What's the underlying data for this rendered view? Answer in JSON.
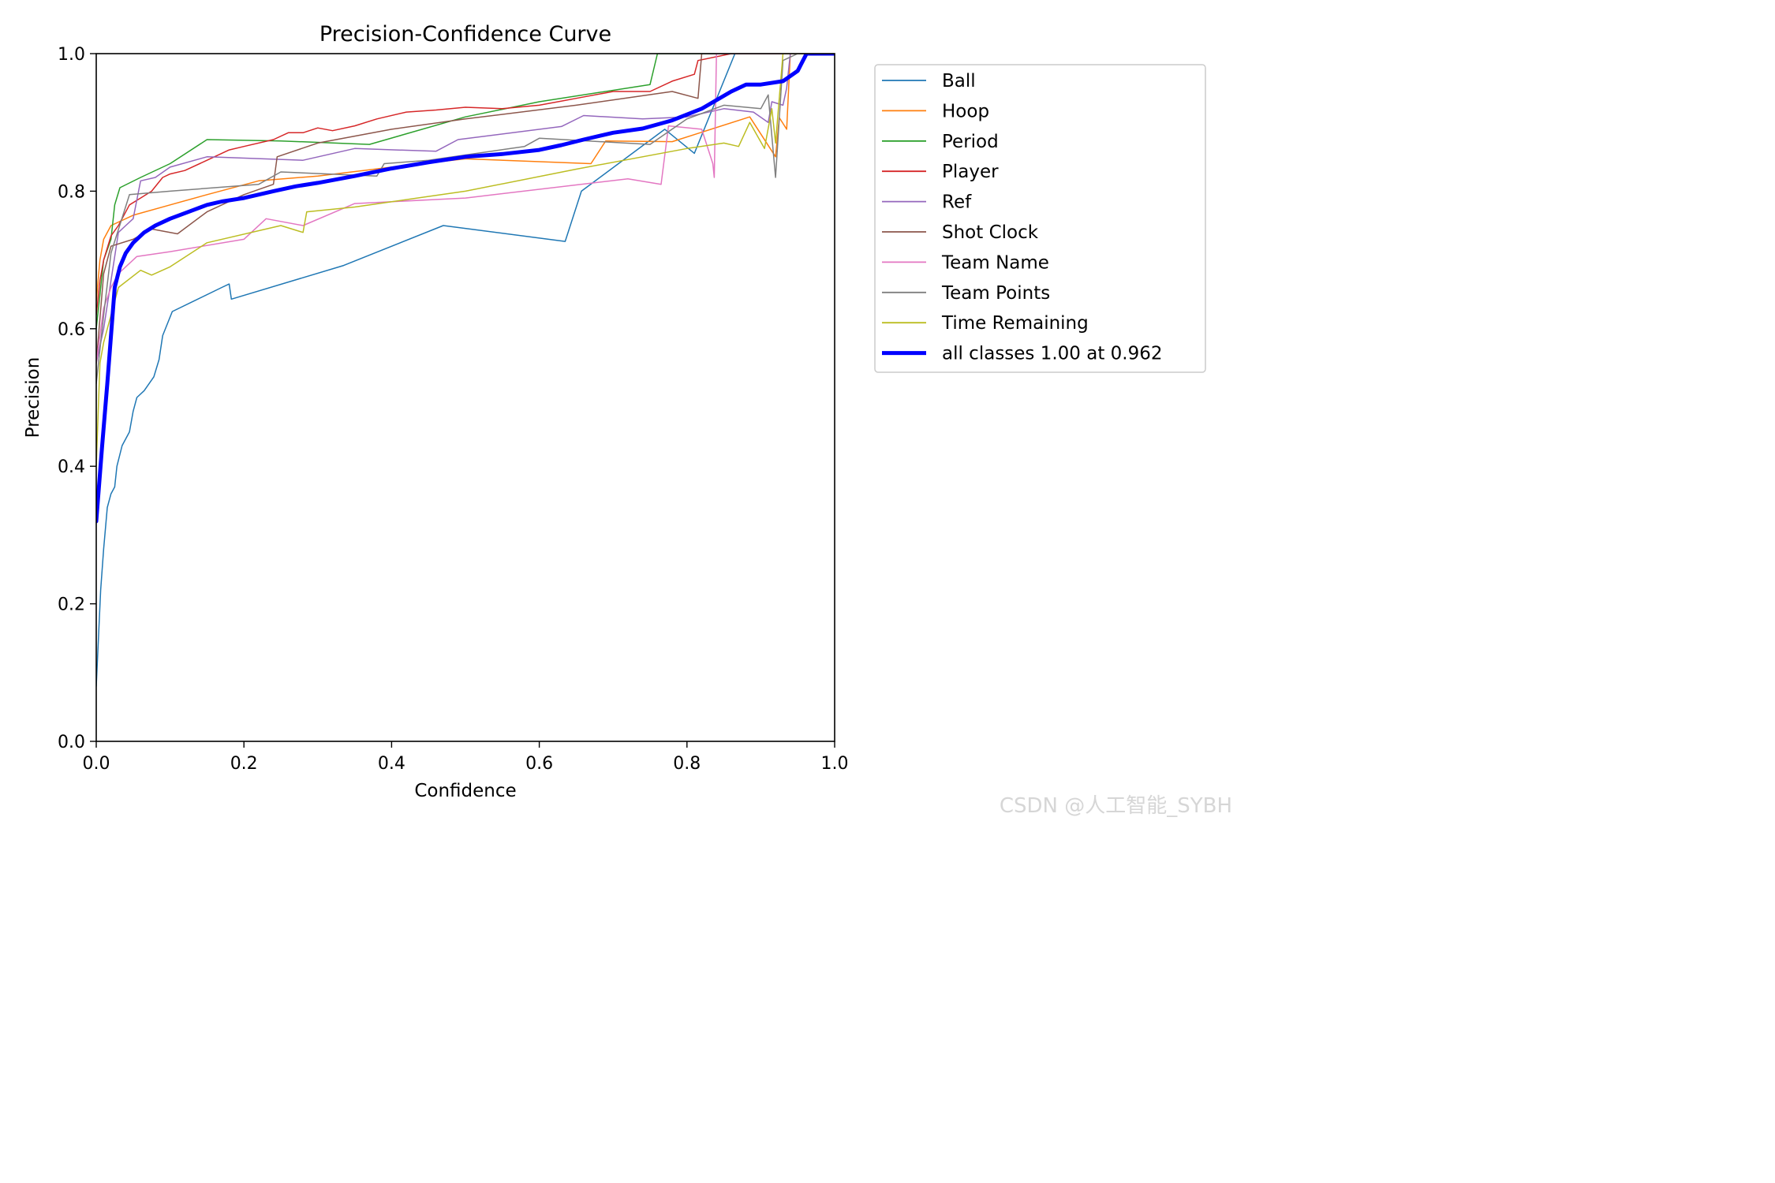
{
  "watermark": "CSDN @人工智能_SYBH",
  "chart_data": {
    "type": "line",
    "title": "Precision-Confidence Curve",
    "xlabel": "Confidence",
    "ylabel": "Precision",
    "xlim": [
      0,
      1
    ],
    "ylim": [
      0,
      1
    ],
    "xticks": [
      0.0,
      0.2,
      0.4,
      0.6,
      0.8,
      1.0
    ],
    "yticks": [
      0.0,
      0.2,
      0.4,
      0.6,
      0.8,
      1.0
    ],
    "xtick_labels": [
      "0.0",
      "0.2",
      "0.4",
      "0.6",
      "0.8",
      "1.0"
    ],
    "ytick_labels": [
      "0.0",
      "0.2",
      "0.4",
      "0.6",
      "0.8",
      "1.0"
    ],
    "grid": false,
    "legend_position": "outside-right-top",
    "series": [
      {
        "name": "Ball",
        "color": "#1f77b4",
        "width": 1.5,
        "points": [
          [
            0,
            0.08
          ],
          [
            0.003,
            0.15
          ],
          [
            0.006,
            0.22
          ],
          [
            0.01,
            0.28
          ],
          [
            0.015,
            0.34
          ],
          [
            0.02,
            0.36
          ],
          [
            0.025,
            0.37
          ],
          [
            0.028,
            0.4
          ],
          [
            0.035,
            0.43
          ],
          [
            0.045,
            0.45
          ],
          [
            0.05,
            0.48
          ],
          [
            0.055,
            0.5
          ],
          [
            0.065,
            0.51
          ],
          [
            0.078,
            0.53
          ],
          [
            0.085,
            0.555
          ],
          [
            0.09,
            0.59
          ],
          [
            0.103,
            0.625
          ],
          [
            0.17,
            0.66
          ],
          [
            0.18,
            0.665
          ],
          [
            0.183,
            0.643
          ],
          [
            0.335,
            0.692
          ],
          [
            0.47,
            0.75
          ],
          [
            0.635,
            0.727
          ],
          [
            0.657,
            0.8
          ],
          [
            0.77,
            0.89
          ],
          [
            0.81,
            0.855
          ],
          [
            0.865,
            1.0
          ],
          [
            1.0,
            1.0
          ]
        ]
      },
      {
        "name": "Hoop",
        "color": "#ff7f0e",
        "width": 1.5,
        "points": [
          [
            0,
            0.64
          ],
          [
            0.005,
            0.7
          ],
          [
            0.01,
            0.73
          ],
          [
            0.02,
            0.75
          ],
          [
            0.05,
            0.765
          ],
          [
            0.1,
            0.78
          ],
          [
            0.15,
            0.795
          ],
          [
            0.22,
            0.815
          ],
          [
            0.3,
            0.822
          ],
          [
            0.4,
            0.835
          ],
          [
            0.5,
            0.847
          ],
          [
            0.67,
            0.84
          ],
          [
            0.69,
            0.873
          ],
          [
            0.78,
            0.872
          ],
          [
            0.885,
            0.908
          ],
          [
            0.92,
            0.85
          ],
          [
            0.925,
            0.907
          ],
          [
            0.935,
            0.89
          ],
          [
            0.94,
            1.0
          ],
          [
            1.0,
            1.0
          ]
        ]
      },
      {
        "name": "Period",
        "color": "#2ca02c",
        "width": 1.5,
        "points": [
          [
            0,
            0.6
          ],
          [
            0.01,
            0.7
          ],
          [
            0.02,
            0.73
          ],
          [
            0.025,
            0.78
          ],
          [
            0.032,
            0.805
          ],
          [
            0.06,
            0.82
          ],
          [
            0.1,
            0.84
          ],
          [
            0.15,
            0.875
          ],
          [
            0.25,
            0.873
          ],
          [
            0.37,
            0.868
          ],
          [
            0.5,
            0.908
          ],
          [
            0.6,
            0.93
          ],
          [
            0.75,
            0.955
          ],
          [
            0.76,
            1.0
          ],
          [
            1.0,
            1.0
          ]
        ]
      },
      {
        "name": "Player",
        "color": "#d62728",
        "width": 1.5,
        "points": [
          [
            0,
            0.62
          ],
          [
            0.005,
            0.67
          ],
          [
            0.01,
            0.7
          ],
          [
            0.02,
            0.735
          ],
          [
            0.03,
            0.75
          ],
          [
            0.045,
            0.78
          ],
          [
            0.06,
            0.79
          ],
          [
            0.075,
            0.8
          ],
          [
            0.09,
            0.82
          ],
          [
            0.1,
            0.825
          ],
          [
            0.12,
            0.83
          ],
          [
            0.15,
            0.845
          ],
          [
            0.18,
            0.86
          ],
          [
            0.2,
            0.865
          ],
          [
            0.24,
            0.875
          ],
          [
            0.26,
            0.885
          ],
          [
            0.28,
            0.885
          ],
          [
            0.3,
            0.892
          ],
          [
            0.32,
            0.888
          ],
          [
            0.35,
            0.895
          ],
          [
            0.38,
            0.905
          ],
          [
            0.42,
            0.915
          ],
          [
            0.46,
            0.918
          ],
          [
            0.5,
            0.922
          ],
          [
            0.55,
            0.92
          ],
          [
            0.6,
            0.925
          ],
          [
            0.65,
            0.935
          ],
          [
            0.7,
            0.945
          ],
          [
            0.75,
            0.945
          ],
          [
            0.78,
            0.96
          ],
          [
            0.81,
            0.97
          ],
          [
            0.815,
            0.99
          ],
          [
            0.86,
            1.0
          ],
          [
            0.93,
            1.0
          ],
          [
            1.0,
            1.0
          ]
        ]
      },
      {
        "name": "Ref",
        "color": "#9467bd",
        "width": 1.5,
        "points": [
          [
            0,
            0.55
          ],
          [
            0.01,
            0.6
          ],
          [
            0.02,
            0.67
          ],
          [
            0.03,
            0.74
          ],
          [
            0.04,
            0.75
          ],
          [
            0.05,
            0.76
          ],
          [
            0.06,
            0.815
          ],
          [
            0.08,
            0.82
          ],
          [
            0.1,
            0.835
          ],
          [
            0.15,
            0.85
          ],
          [
            0.28,
            0.845
          ],
          [
            0.35,
            0.862
          ],
          [
            0.46,
            0.858
          ],
          [
            0.49,
            0.875
          ],
          [
            0.63,
            0.894
          ],
          [
            0.66,
            0.91
          ],
          [
            0.74,
            0.905
          ],
          [
            0.8,
            0.908
          ],
          [
            0.85,
            0.92
          ],
          [
            0.89,
            0.915
          ],
          [
            0.91,
            0.9
          ],
          [
            0.915,
            0.93
          ],
          [
            0.93,
            0.925
          ],
          [
            0.935,
            0.95
          ],
          [
            0.94,
            1.0
          ],
          [
            1.0,
            1.0
          ]
        ]
      },
      {
        "name": "Shot Clock",
        "color": "#8c564b",
        "width": 1.5,
        "points": [
          [
            0,
            0.55
          ],
          [
            0.01,
            0.68
          ],
          [
            0.02,
            0.72
          ],
          [
            0.05,
            0.73
          ],
          [
            0.075,
            0.745
          ],
          [
            0.11,
            0.738
          ],
          [
            0.15,
            0.77
          ],
          [
            0.2,
            0.795
          ],
          [
            0.24,
            0.81
          ],
          [
            0.245,
            0.85
          ],
          [
            0.3,
            0.87
          ],
          [
            0.4,
            0.89
          ],
          [
            0.5,
            0.905
          ],
          [
            0.65,
            0.925
          ],
          [
            0.78,
            0.945
          ],
          [
            0.815,
            0.935
          ],
          [
            0.82,
            1.0
          ],
          [
            1.0,
            1.0
          ]
        ]
      },
      {
        "name": "Team Name",
        "color": "#e377c2",
        "width": 1.5,
        "points": [
          [
            0,
            0.55
          ],
          [
            0.01,
            0.63
          ],
          [
            0.02,
            0.66
          ],
          [
            0.03,
            0.68
          ],
          [
            0.055,
            0.705
          ],
          [
            0.1,
            0.712
          ],
          [
            0.2,
            0.73
          ],
          [
            0.23,
            0.76
          ],
          [
            0.28,
            0.75
          ],
          [
            0.35,
            0.782
          ],
          [
            0.5,
            0.79
          ],
          [
            0.72,
            0.818
          ],
          [
            0.765,
            0.81
          ],
          [
            0.775,
            0.895
          ],
          [
            0.82,
            0.89
          ],
          [
            0.835,
            0.84
          ],
          [
            0.837,
            0.82
          ],
          [
            0.84,
            1.0
          ],
          [
            1.0,
            1.0
          ]
        ]
      },
      {
        "name": "Team Points",
        "color": "#7f7f7f",
        "width": 1.5,
        "points": [
          [
            0,
            0.52
          ],
          [
            0.01,
            0.62
          ],
          [
            0.02,
            0.71
          ],
          [
            0.045,
            0.795
          ],
          [
            0.1,
            0.8
          ],
          [
            0.22,
            0.81
          ],
          [
            0.25,
            0.828
          ],
          [
            0.38,
            0.822
          ],
          [
            0.39,
            0.84
          ],
          [
            0.45,
            0.845
          ],
          [
            0.58,
            0.865
          ],
          [
            0.6,
            0.877
          ],
          [
            0.75,
            0.868
          ],
          [
            0.8,
            0.905
          ],
          [
            0.85,
            0.925
          ],
          [
            0.9,
            0.92
          ],
          [
            0.91,
            0.94
          ],
          [
            0.915,
            0.88
          ],
          [
            0.92,
            0.82
          ],
          [
            0.93,
            0.99
          ],
          [
            0.95,
            1.0
          ],
          [
            1.0,
            1.0
          ]
        ]
      },
      {
        "name": "Time Remaining",
        "color": "#bcbd22",
        "width": 1.5,
        "points": [
          [
            0,
            0.4
          ],
          [
            0.005,
            0.55
          ],
          [
            0.01,
            0.58
          ],
          [
            0.03,
            0.66
          ],
          [
            0.06,
            0.685
          ],
          [
            0.075,
            0.678
          ],
          [
            0.1,
            0.69
          ],
          [
            0.15,
            0.725
          ],
          [
            0.25,
            0.75
          ],
          [
            0.28,
            0.74
          ],
          [
            0.285,
            0.77
          ],
          [
            0.35,
            0.777
          ],
          [
            0.5,
            0.8
          ],
          [
            0.65,
            0.832
          ],
          [
            0.8,
            0.862
          ],
          [
            0.85,
            0.87
          ],
          [
            0.87,
            0.865
          ],
          [
            0.885,
            0.9
          ],
          [
            0.905,
            0.862
          ],
          [
            0.915,
            0.92
          ],
          [
            0.92,
            0.87
          ],
          [
            0.93,
            1.0
          ],
          [
            1.0,
            1.0
          ]
        ]
      },
      {
        "name": "all classes 1.00 at 0.962",
        "color": "#0000ff",
        "width": 5,
        "points": [
          [
            0,
            0.32
          ],
          [
            0.008,
            0.43
          ],
          [
            0.015,
            0.52
          ],
          [
            0.02,
            0.59
          ],
          [
            0.025,
            0.66
          ],
          [
            0.032,
            0.69
          ],
          [
            0.04,
            0.71
          ],
          [
            0.05,
            0.725
          ],
          [
            0.065,
            0.74
          ],
          [
            0.08,
            0.75
          ],
          [
            0.1,
            0.76
          ],
          [
            0.13,
            0.772
          ],
          [
            0.15,
            0.78
          ],
          [
            0.17,
            0.785
          ],
          [
            0.2,
            0.79
          ],
          [
            0.24,
            0.8
          ],
          [
            0.27,
            0.807
          ],
          [
            0.3,
            0.812
          ],
          [
            0.35,
            0.822
          ],
          [
            0.4,
            0.833
          ],
          [
            0.45,
            0.842
          ],
          [
            0.5,
            0.85
          ],
          [
            0.55,
            0.854
          ],
          [
            0.6,
            0.86
          ],
          [
            0.63,
            0.867
          ],
          [
            0.66,
            0.875
          ],
          [
            0.7,
            0.885
          ],
          [
            0.74,
            0.891
          ],
          [
            0.78,
            0.903
          ],
          [
            0.82,
            0.92
          ],
          [
            0.86,
            0.945
          ],
          [
            0.88,
            0.955
          ],
          [
            0.9,
            0.955
          ],
          [
            0.93,
            0.96
          ],
          [
            0.95,
            0.975
          ],
          [
            0.962,
            1.0
          ],
          [
            1.0,
            1.0
          ]
        ]
      }
    ]
  }
}
